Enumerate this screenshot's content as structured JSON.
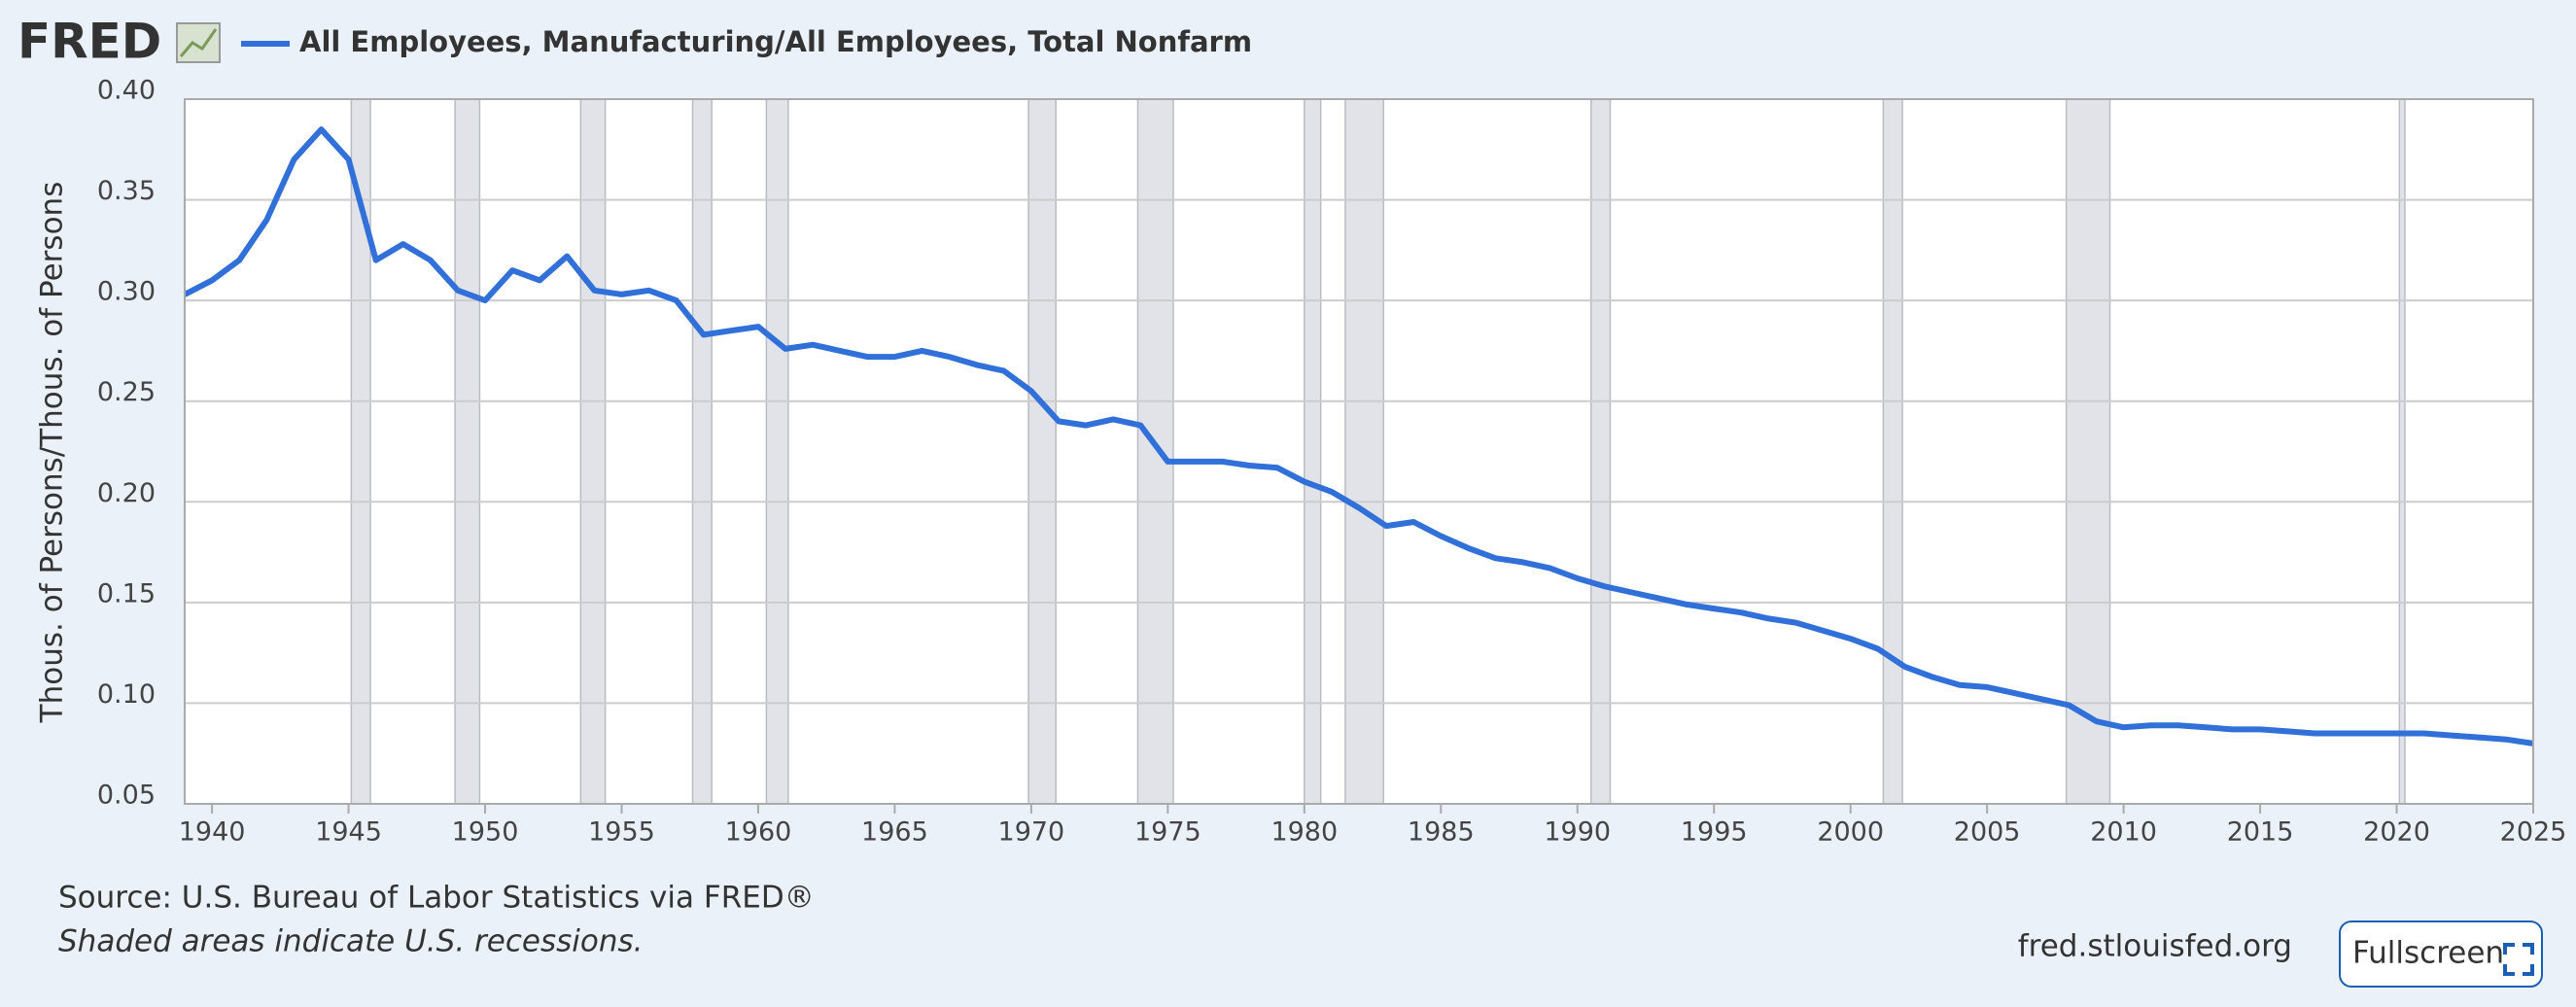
{
  "page": {
    "logo": "FRED",
    "source": "Source: U.S. Bureau of Labor Statistics via FRED®",
    "note": "Shaded areas indicate U.S. recessions.",
    "site": "fred.stlouisfed.org",
    "button": "Fullscreen"
  },
  "chart_data": {
    "type": "line",
    "ylabel": "Thous. of Persons/Thous. of Persons",
    "grid": true,
    "x": [
      1939,
      1940,
      1941,
      1942,
      1943,
      1944,
      1945,
      1946,
      1947,
      1948,
      1949,
      1950,
      1951,
      1952,
      1953,
      1954,
      1955,
      1956,
      1957,
      1958,
      1959,
      1960,
      1961,
      1962,
      1963,
      1964,
      1965,
      1966,
      1967,
      1968,
      1969,
      1970,
      1971,
      1972,
      1973,
      1974,
      1975,
      1976,
      1977,
      1978,
      1979,
      1980,
      1981,
      1982,
      1983,
      1984,
      1985,
      1986,
      1987,
      1988,
      1989,
      1990,
      1991,
      1992,
      1993,
      1994,
      1995,
      1996,
      1997,
      1998,
      1999,
      2000,
      2001,
      2002,
      2003,
      2004,
      2005,
      2006,
      2007,
      2008,
      2009,
      2010,
      2011,
      2012,
      2013,
      2014,
      2015,
      2016,
      2017,
      2018,
      2019,
      2020,
      2021,
      2022,
      2023,
      2024,
      2025
    ],
    "series": [
      {
        "name": "All Employees, Manufacturing/All Employees, Total Nonfarm",
        "color": "#3070d8",
        "values": [
          0.303,
          0.31,
          0.32,
          0.34,
          0.37,
          0.385,
          0.37,
          0.32,
          0.328,
          0.32,
          0.305,
          0.3,
          0.315,
          0.31,
          0.322,
          0.305,
          0.303,
          0.305,
          0.3,
          0.283,
          0.285,
          0.287,
          0.276,
          0.278,
          0.275,
          0.272,
          0.272,
          0.275,
          0.272,
          0.268,
          0.265,
          0.255,
          0.24,
          0.238,
          0.241,
          0.238,
          0.22,
          0.22,
          0.22,
          0.218,
          0.217,
          0.21,
          0.205,
          0.197,
          0.188,
          0.19,
          0.183,
          0.177,
          0.172,
          0.17,
          0.167,
          0.162,
          0.158,
          0.155,
          0.152,
          0.149,
          0.147,
          0.145,
          0.142,
          0.14,
          0.136,
          0.132,
          0.127,
          0.118,
          0.113,
          0.109,
          0.108,
          0.105,
          0.102,
          0.099,
          0.091,
          0.088,
          0.089,
          0.089,
          0.088,
          0.087,
          0.087,
          0.086,
          0.085,
          0.085,
          0.085,
          0.085,
          0.085,
          0.084,
          0.083,
          0.082,
          0.08
        ]
      }
    ],
    "recessions": [
      {
        "start": 1945.1,
        "end": 1945.8
      },
      {
        "start": 1948.9,
        "end": 1949.8
      },
      {
        "start": 1953.5,
        "end": 1954.4
      },
      {
        "start": 1957.6,
        "end": 1958.3
      },
      {
        "start": 1960.3,
        "end": 1961.1
      },
      {
        "start": 1969.9,
        "end": 1970.9
      },
      {
        "start": 1973.9,
        "end": 1975.2
      },
      {
        "start": 1980.0,
        "end": 1980.6
      },
      {
        "start": 1981.5,
        "end": 1982.9
      },
      {
        "start": 1990.5,
        "end": 1991.2
      },
      {
        "start": 2001.2,
        "end": 2001.9
      },
      {
        "start": 2007.9,
        "end": 2009.5
      },
      {
        "start": 2020.1,
        "end": 2020.3
      }
    ],
    "xlim": [
      1939,
      2025
    ],
    "xticks": [
      1940,
      1945,
      1950,
      1955,
      1960,
      1965,
      1970,
      1975,
      1980,
      1985,
      1990,
      1995,
      2000,
      2005,
      2010,
      2015,
      2020,
      2025
    ],
    "ylim": [
      0.05,
      0.4
    ],
    "yticks": [
      0.05,
      {
        "value": 0.1,
        "label": "0.10"
      },
      0.15,
      {
        "value": 0.2,
        "label": "0.20"
      },
      0.25,
      {
        "value": 0.3,
        "label": "0.30"
      },
      0.35,
      {
        "value": 0.4,
        "label": "0.40"
      }
    ]
  }
}
